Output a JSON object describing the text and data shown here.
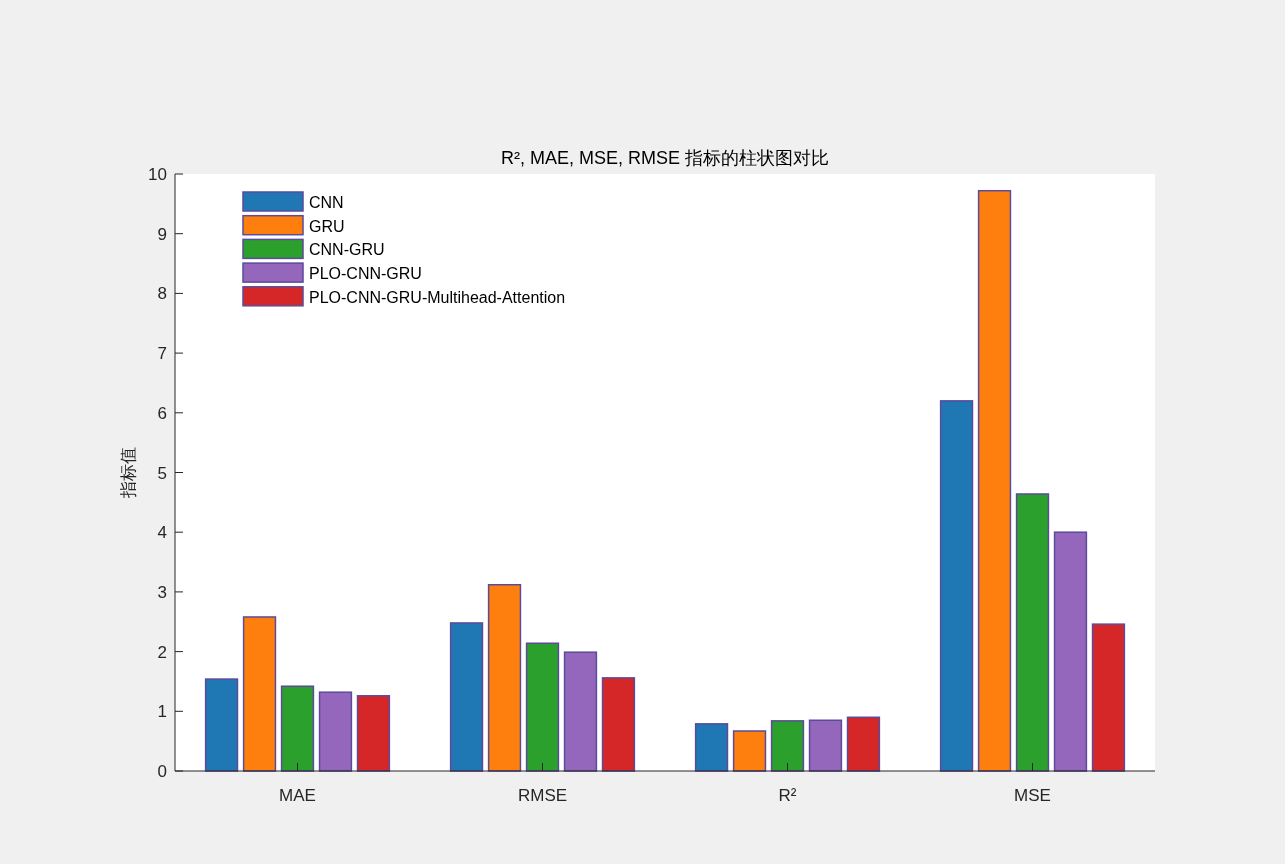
{
  "chart_data": {
    "type": "bar",
    "title": "R², MAE, MSE, RMSE 指标的柱状图对比",
    "ylabel": "指标值",
    "categories": [
      "MAE",
      "RMSE",
      "R²",
      "MSE"
    ],
    "series": [
      {
        "name": "CNN",
        "color": "#1f77b4",
        "values": [
          1.54,
          2.48,
          0.79,
          6.2
        ]
      },
      {
        "name": "GRU",
        "color": "#ff7f0e",
        "values": [
          2.58,
          3.12,
          0.67,
          9.72
        ]
      },
      {
        "name": "CNN-GRU",
        "color": "#2ca02c",
        "values": [
          1.42,
          2.14,
          0.84,
          4.64
        ]
      },
      {
        "name": "PLO-CNN-GRU",
        "color": "#9467bd",
        "values": [
          1.32,
          1.99,
          0.85,
          4.0
        ]
      },
      {
        "name": "PLO-CNN-GRU-Multihead-Attention",
        "color": "#d62728",
        "values": [
          1.26,
          1.56,
          0.9,
          2.46
        ]
      }
    ],
    "ylim": [
      0,
      10
    ],
    "yticks": [
      0,
      1,
      2,
      3,
      4,
      5,
      6,
      7,
      8,
      9,
      10
    ],
    "legend": "top left"
  }
}
